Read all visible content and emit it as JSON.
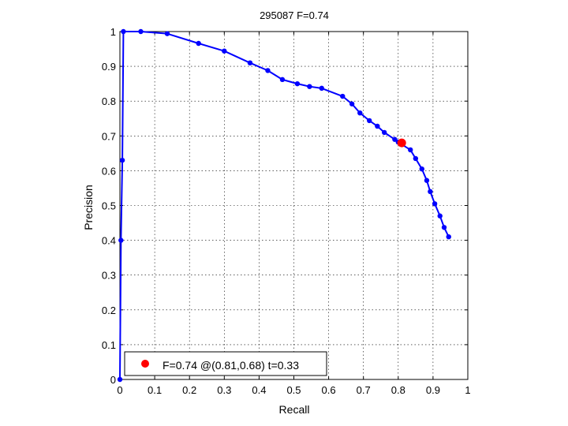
{
  "chart_data": {
    "type": "line",
    "title": "295087 F=0.74",
    "xlabel": "Recall",
    "ylabel": "Precision",
    "xlim": [
      0,
      1
    ],
    "ylim": [
      0,
      1
    ],
    "grid": true,
    "xticks": [
      "0",
      "0.1",
      "0.2",
      "0.3",
      "0.4",
      "0.5",
      "0.6",
      "0.7",
      "0.8",
      "0.9",
      "1"
    ],
    "yticks": [
      "0",
      "0.1",
      "0.2",
      "0.3",
      "0.4",
      "0.5",
      "0.6",
      "0.7",
      "0.8",
      "0.9",
      "1"
    ],
    "series": [
      {
        "color": "#0000ff",
        "points": [
          [
            0.0,
            0.0
          ],
          [
            0.003,
            0.4
          ],
          [
            0.007,
            0.63
          ],
          [
            0.01,
            1.0
          ],
          [
            0.06,
            1.0
          ],
          [
            0.136,
            0.994
          ],
          [
            0.226,
            0.966
          ],
          [
            0.3,
            0.944
          ],
          [
            0.374,
            0.91
          ],
          [
            0.425,
            0.888
          ],
          [
            0.467,
            0.862
          ],
          [
            0.51,
            0.85
          ],
          [
            0.545,
            0.842
          ],
          [
            0.58,
            0.837
          ],
          [
            0.64,
            0.814
          ],
          [
            0.667,
            0.792
          ],
          [
            0.69,
            0.766
          ],
          [
            0.717,
            0.744
          ],
          [
            0.74,
            0.728
          ],
          [
            0.76,
            0.71
          ],
          [
            0.79,
            0.69
          ],
          [
            0.8,
            0.682
          ],
          [
            0.835,
            0.66
          ],
          [
            0.85,
            0.635
          ],
          [
            0.868,
            0.605
          ],
          [
            0.882,
            0.572
          ],
          [
            0.892,
            0.54
          ],
          [
            0.905,
            0.505
          ],
          [
            0.92,
            0.47
          ],
          [
            0.932,
            0.437
          ],
          [
            0.945,
            0.41
          ]
        ]
      }
    ],
    "best_point": {
      "x": 0.81,
      "y": 0.68,
      "color": "#ff0000"
    },
    "legend": {
      "position": "bottom-left",
      "text": "F=0.74 @(0.81,0.68) t=0.33"
    }
  }
}
